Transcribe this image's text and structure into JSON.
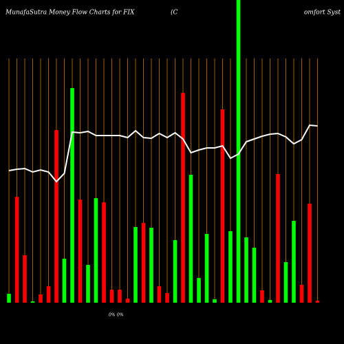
{
  "chart_data": {
    "type": "bar",
    "title": "MunafaSutra  Money Flow  Charts for FIX",
    "subtitle": "(C",
    "subtitle2": "omfort Syst",
    "annotations": [
      "0%",
      "0%"
    ],
    "categories": [
      null,
      null,
      null,
      null,
      null,
      null,
      null,
      null,
      null,
      null,
      null,
      null,
      null,
      null,
      null,
      null,
      null,
      null,
      null,
      null,
      null,
      null,
      null,
      null,
      null,
      null,
      null,
      null,
      null,
      null,
      null,
      null,
      null,
      null,
      null,
      null,
      null,
      null,
      null,
      null
    ],
    "values": [
      13,
      154,
      69,
      2,
      12,
      24,
      251,
      64,
      312,
      150,
      55,
      152,
      146,
      19,
      19,
      6,
      110,
      116,
      109,
      24,
      14,
      91,
      305,
      186,
      36,
      100,
      5,
      281,
      104,
      440,
      95,
      80,
      18,
      4,
      187,
      59,
      119,
      26,
      144,
      3
    ],
    "colors": [
      "#00ff00",
      "#ff0000",
      "#ff0000",
      "#00ff00",
      "#ff0000",
      "#ff0000",
      "#ff0000",
      "#00ff00",
      "#00ff00",
      "#ff0000",
      "#00ff00",
      "#00ff00",
      "#ff0000",
      "#ff0000",
      "#ff0000",
      "#ff0000",
      "#00ff00",
      "#ff0000",
      "#00ff00",
      "#ff0000",
      "#ff0000",
      "#00ff00",
      "#ff0000",
      "#00ff00",
      "#00ff00",
      "#00ff00",
      "#00ff00",
      "#ff0000",
      "#00ff00",
      "#00ff00",
      "#00ff00",
      "#00ff00",
      "#ff0000",
      "#00ff00",
      "#ff0000",
      "#00ff00",
      "#00ff00",
      "#ff0000",
      "#ff0000",
      "#ff0000"
    ],
    "line": {
      "color": "#ffffff",
      "values": [
        192,
        194,
        195,
        190,
        193,
        190,
        176,
        188,
        248,
        247,
        249,
        243,
        243,
        243,
        243,
        240,
        250,
        240,
        239,
        246,
        240,
        247,
        238,
        218,
        222,
        225,
        225,
        228,
        210,
        216,
        234,
        238,
        242,
        245,
        246,
        241,
        231,
        237,
        258,
        257
      ]
    },
    "ylim": [
      0,
      440
    ],
    "gridcolor": "#c87800"
  }
}
